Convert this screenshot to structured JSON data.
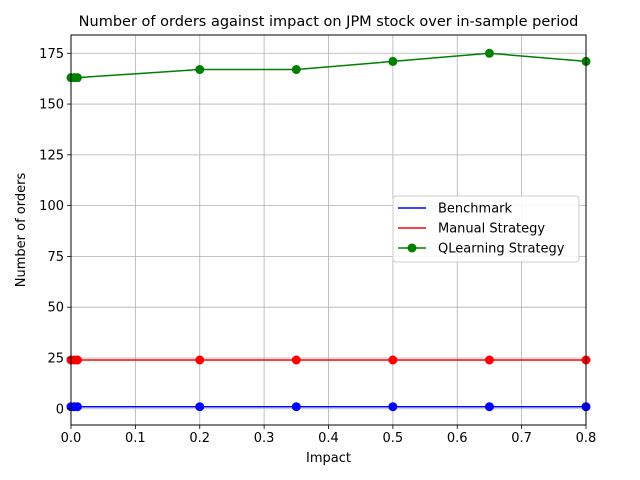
{
  "chart_data": {
    "type": "line",
    "title": "Number of orders against impact on JPM stock over in-sample period",
    "xlabel": "Impact",
    "ylabel": "Number of orders",
    "xlim": [
      0.0,
      0.8
    ],
    "ylim": [
      -8,
      184
    ],
    "x_ticks": [
      0.0,
      0.1,
      0.2,
      0.3,
      0.4,
      0.5,
      0.6,
      0.7,
      0.8
    ],
    "x_tick_labels": [
      "0.0",
      "0.1",
      "0.2",
      "0.3",
      "0.4",
      "0.5",
      "0.6",
      "0.7",
      "0.8"
    ],
    "y_ticks": [
      0,
      25,
      50,
      75,
      100,
      125,
      150,
      175
    ],
    "y_tick_labels": [
      "0",
      "25",
      "50",
      "75",
      "100",
      "125",
      "150",
      "175"
    ],
    "grid": true,
    "legend_position": "center-right",
    "x": [
      0.0,
      0.005,
      0.01,
      0.2,
      0.35,
      0.5,
      0.65,
      0.8
    ],
    "series": [
      {
        "name": "Benchmark",
        "color": "#0000ff",
        "marker": "circle",
        "values": [
          1,
          1,
          1,
          1,
          1,
          1,
          1,
          1
        ]
      },
      {
        "name": "Manual Strategy",
        "color": "#ff0000",
        "marker": "circle",
        "values": [
          24,
          24,
          24,
          24,
          24,
          24,
          24,
          24
        ]
      },
      {
        "name": "QLearning Strategy",
        "color": "#008000",
        "marker": "circle",
        "values": [
          163,
          163,
          163,
          167,
          167,
          171,
          175,
          171
        ]
      }
    ],
    "legend_entries": [
      {
        "name": "Benchmark",
        "color": "#0000ff",
        "marker": false
      },
      {
        "name": "Manual Strategy",
        "color": "#ff0000",
        "marker": false
      },
      {
        "name": "QLearning Strategy",
        "color": "#008000",
        "marker": true
      }
    ]
  }
}
